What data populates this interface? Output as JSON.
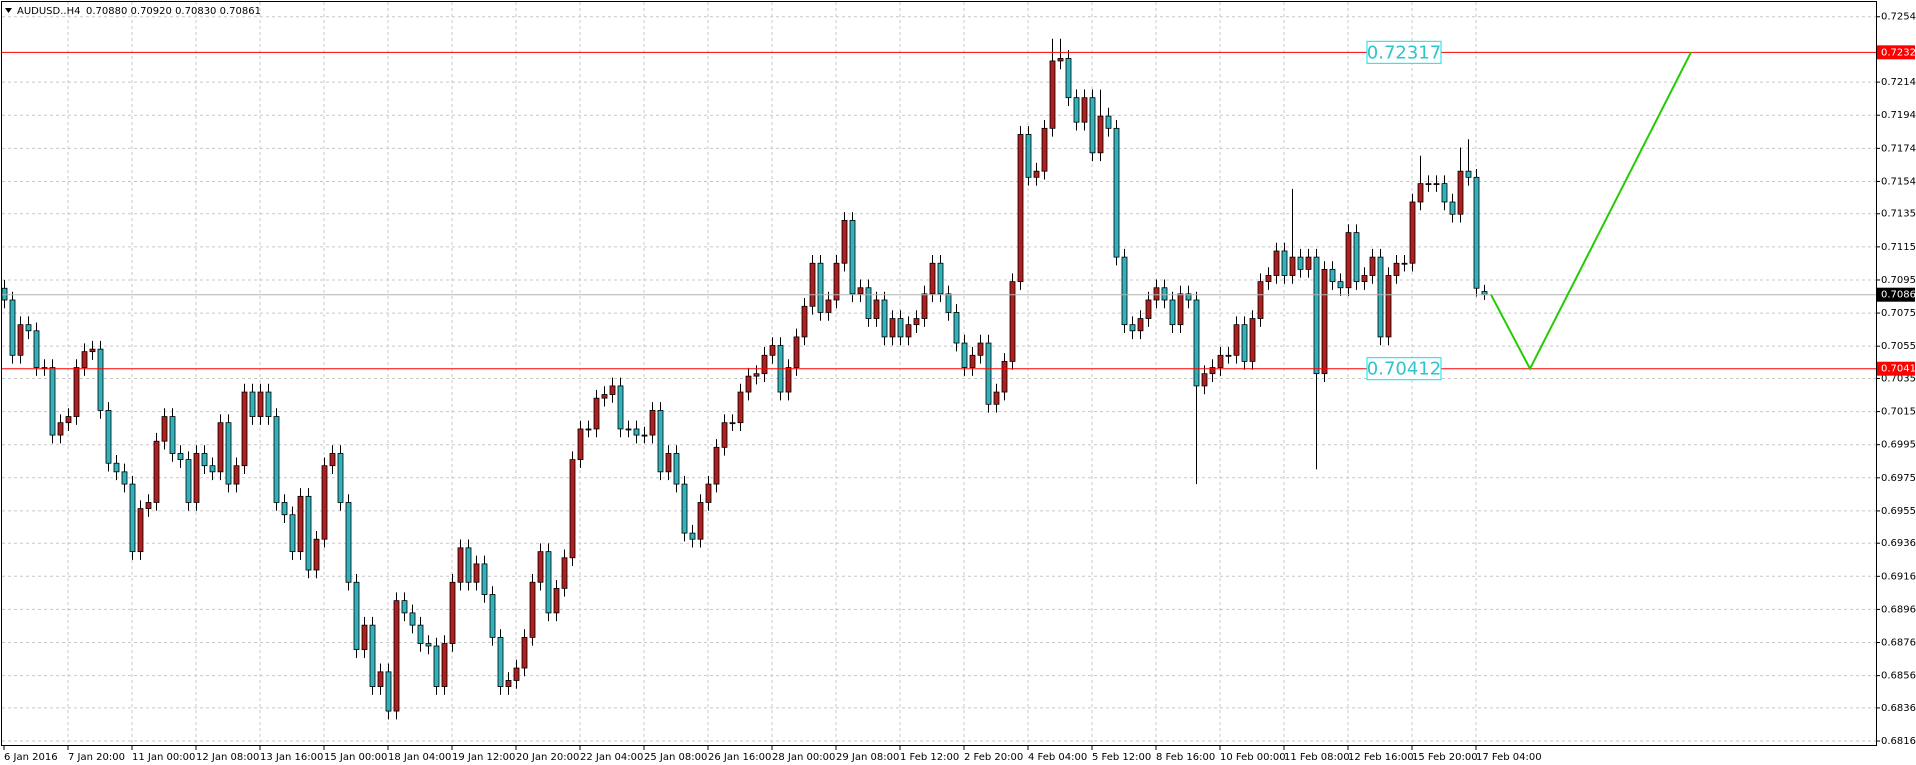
{
  "chart_data": {
    "type": "candlestick",
    "symbol": "AUDUSD..H4",
    "ohlc_text": "0.70880 0.70920 0.70830 0.70861",
    "bull_color": "#b01e1e",
    "bear_color": "#2fb3bd",
    "grid": true,
    "ylim": [
      0.68135,
      0.72629
    ],
    "yticks": [
      {
        "value": 0.7254,
        "label": "0.72540"
      },
      0.72145,
      0.71945,
      0.71745,
      0.71545,
      {
        "value": 0.7135,
        "label": "0.71350"
      },
      {
        "value": 0.7115,
        "label": "0.71150"
      },
      {
        "value": 0.7095,
        "label": "0.70950"
      },
      {
        "value": 0.7075,
        "label": "0.70750"
      },
      {
        "value": 0.7055,
        "label": "0.70550"
      },
      0.70355,
      0.70155,
      0.69955,
      0.69755,
      0.69555,
      {
        "value": 0.6936,
        "label": "0.69360"
      },
      {
        "value": 0.6916,
        "label": "0.69160"
      },
      {
        "value": 0.6896,
        "label": "0.68960"
      },
      {
        "value": 0.6876,
        "label": "0.68760"
      },
      {
        "value": 0.6856,
        "label": "0.68560"
      },
      0.68365,
      0.68165
    ],
    "xlabels": [
      "6 Jan 2016",
      "7 Jan 20:00",
      "11 Jan 00:00",
      "12 Jan 08:00",
      "13 Jan 16:00",
      "15 Jan 00:00",
      "18 Jan 04:00",
      "19 Jan 12:00",
      "20 Jan 20:00",
      "22 Jan 04:00",
      "25 Jan 08:00",
      "26 Jan 16:00",
      "28 Jan 00:00",
      "29 Jan 08:00",
      "1 Feb 12:00",
      "2 Feb 20:00",
      "4 Feb 04:00",
      "5 Feb 12:00",
      "8 Feb 16:00",
      "10 Feb 00:00",
      "11 Feb 08:00",
      "12 Feb 16:00",
      "15 Feb 20:00",
      "17 Feb 04:00"
    ],
    "levels": [
      {
        "value": 0.72325,
        "label": "0.72325",
        "note": "0.72317",
        "color": "#ff0000"
      },
      {
        "value": 0.70414,
        "label": "0.70414",
        "note": "0.70412",
        "color": "#ff0000"
      }
    ],
    "current": {
      "value": 0.70861,
      "label": "0.70861"
    },
    "projection_color": "#22cc00",
    "candles": [
      [
        0.709,
        0.7095,
        0.70779,
        0.70829
      ],
      [
        0.70829,
        0.70879,
        0.70445,
        0.70495
      ],
      [
        0.70495,
        0.7073,
        0.70445,
        0.7068
      ],
      [
        0.7068,
        0.7073,
        0.70593,
        0.70643
      ],
      [
        0.70643,
        0.70693,
        0.70371,
        0.70421
      ],
      [
        0.70421,
        0.70471,
        0.70371,
        0.70421
      ],
      [
        0.70421,
        0.70471,
        0.69963,
        0.70013
      ],
      [
        0.70013,
        0.70138,
        0.69963,
        0.70088
      ],
      [
        0.70088,
        0.70175,
        0.70038,
        0.70125
      ],
      [
        0.70125,
        0.70471,
        0.70075,
        0.70421
      ],
      [
        0.70421,
        0.70567,
        0.70371,
        0.70517
      ],
      [
        0.70517,
        0.70582,
        0.70467,
        0.70532
      ],
      [
        0.70532,
        0.70582,
        0.70112,
        0.70162
      ],
      [
        0.70162,
        0.70212,
        0.69793,
        0.69843
      ],
      [
        0.69843,
        0.69893,
        0.69741,
        0.69791
      ],
      [
        0.69791,
        0.69841,
        0.69667,
        0.69717
      ],
      [
        0.69717,
        0.69767,
        0.69259,
        0.69309
      ],
      [
        0.69309,
        0.69619,
        0.69259,
        0.69569
      ],
      [
        0.69569,
        0.69656,
        0.69519,
        0.69606
      ],
      [
        0.69606,
        0.70026,
        0.69556,
        0.69976
      ],
      [
        0.69976,
        0.70175,
        0.69926,
        0.70125
      ],
      [
        0.70125,
        0.70175,
        0.69852,
        0.69902
      ],
      [
        0.69902,
        0.69952,
        0.69815,
        0.69865
      ],
      [
        0.69865,
        0.69915,
        0.69556,
        0.69606
      ],
      [
        0.69606,
        0.69952,
        0.69556,
        0.69902
      ],
      [
        0.69902,
        0.69952,
        0.69778,
        0.69828
      ],
      [
        0.69828,
        0.69878,
        0.69741,
        0.69791
      ],
      [
        0.69791,
        0.70138,
        0.69741,
        0.70088
      ],
      [
        0.70088,
        0.70138,
        0.69667,
        0.69717
      ],
      [
        0.69717,
        0.69878,
        0.69667,
        0.69828
      ],
      [
        0.69828,
        0.70323,
        0.69778,
        0.70273
      ],
      [
        0.70273,
        0.70323,
        0.70075,
        0.70125
      ],
      [
        0.70125,
        0.70323,
        0.70075,
        0.70273
      ],
      [
        0.70273,
        0.70323,
        0.70075,
        0.70125
      ],
      [
        0.70125,
        0.70175,
        0.69556,
        0.69606
      ],
      [
        0.69606,
        0.69656,
        0.69482,
        0.69532
      ],
      [
        0.69532,
        0.69582,
        0.69259,
        0.69309
      ],
      [
        0.69309,
        0.69693,
        0.69259,
        0.69643
      ],
      [
        0.69643,
        0.69693,
        0.69148,
        0.69198
      ],
      [
        0.69198,
        0.69434,
        0.69148,
        0.69384
      ],
      [
        0.69384,
        0.69878,
        0.69334,
        0.69828
      ],
      [
        0.69828,
        0.69952,
        0.69778,
        0.69902
      ],
      [
        0.69902,
        0.69952,
        0.69556,
        0.69606
      ],
      [
        0.69606,
        0.69656,
        0.69074,
        0.69124
      ],
      [
        0.69124,
        0.69174,
        0.68667,
        0.68717
      ],
      [
        0.68717,
        0.68915,
        0.68667,
        0.68865
      ],
      [
        0.68865,
        0.68915,
        0.68444,
        0.68494
      ],
      [
        0.68494,
        0.68633,
        0.68444,
        0.68583
      ],
      [
        0.68583,
        0.68633,
        0.68296,
        0.68346
      ],
      [
        0.68346,
        0.69063,
        0.68296,
        0.69013
      ],
      [
        0.69013,
        0.69063,
        0.68889,
        0.68939
      ],
      [
        0.68939,
        0.68989,
        0.68815,
        0.68865
      ],
      [
        0.68865,
        0.68915,
        0.68704,
        0.68754
      ],
      [
        0.68754,
        0.68804,
        0.68689,
        0.68739
      ],
      [
        0.68739,
        0.68789,
        0.68444,
        0.68494
      ],
      [
        0.68494,
        0.68804,
        0.68444,
        0.68754
      ],
      [
        0.68754,
        0.69174,
        0.68704,
        0.69124
      ],
      [
        0.69124,
        0.69382,
        0.69074,
        0.69332
      ],
      [
        0.69332,
        0.69382,
        0.69074,
        0.69124
      ],
      [
        0.69124,
        0.69285,
        0.69074,
        0.69235
      ],
      [
        0.69235,
        0.69285,
        0.69,
        0.6905
      ],
      [
        0.6905,
        0.691,
        0.68741,
        0.68791
      ],
      [
        0.68791,
        0.68841,
        0.68444,
        0.68494
      ],
      [
        0.68494,
        0.68581,
        0.68444,
        0.68531
      ],
      [
        0.68531,
        0.68656,
        0.68481,
        0.68606
      ],
      [
        0.68606,
        0.68841,
        0.68556,
        0.68791
      ],
      [
        0.68791,
        0.69174,
        0.68741,
        0.69124
      ],
      [
        0.69124,
        0.69359,
        0.69074,
        0.69309
      ],
      [
        0.69309,
        0.69359,
        0.68889,
        0.68939
      ],
      [
        0.68939,
        0.69137,
        0.68889,
        0.69087
      ],
      [
        0.69087,
        0.69322,
        0.69037,
        0.69272
      ],
      [
        0.69272,
        0.69915,
        0.69222,
        0.69865
      ],
      [
        0.69865,
        0.701,
        0.69815,
        0.7005
      ],
      [
        0.7005,
        0.701,
        0.7,
        0.7005
      ],
      [
        0.7005,
        0.70286,
        0.7,
        0.70236
      ],
      [
        0.70236,
        0.70308,
        0.70186,
        0.70258
      ],
      [
        0.70258,
        0.7036,
        0.70208,
        0.7031
      ],
      [
        0.7031,
        0.7036,
        0.7,
        0.7005
      ],
      [
        0.7005,
        0.701,
        0.7,
        0.7005
      ],
      [
        0.7005,
        0.701,
        0.69963,
        0.70013
      ],
      [
        0.70013,
        0.70063,
        0.69963,
        0.70013
      ],
      [
        0.70013,
        0.70212,
        0.69963,
        0.70162
      ],
      [
        0.70162,
        0.70212,
        0.69741,
        0.69791
      ],
      [
        0.69791,
        0.69952,
        0.69741,
        0.69902
      ],
      [
        0.69902,
        0.69952,
        0.69667,
        0.69717
      ],
      [
        0.69717,
        0.69767,
        0.69371,
        0.69421
      ],
      [
        0.69421,
        0.69471,
        0.69334,
        0.69384
      ],
      [
        0.69384,
        0.69656,
        0.69334,
        0.69606
      ],
      [
        0.69606,
        0.69767,
        0.69556,
        0.69717
      ],
      [
        0.69717,
        0.69989,
        0.69667,
        0.69939
      ],
      [
        0.69939,
        0.70138,
        0.69889,
        0.70088
      ],
      [
        0.70088,
        0.70138,
        0.70038,
        0.70088
      ],
      [
        0.70088,
        0.70323,
        0.70038,
        0.70273
      ],
      [
        0.70273,
        0.70419,
        0.70223,
        0.70369
      ],
      [
        0.70369,
        0.70434,
        0.70319,
        0.70384
      ],
      [
        0.70384,
        0.70545,
        0.70334,
        0.70495
      ],
      [
        0.70495,
        0.70604,
        0.70445,
        0.70554
      ],
      [
        0.70554,
        0.70604,
        0.70223,
        0.70273
      ],
      [
        0.70273,
        0.70471,
        0.70223,
        0.70421
      ],
      [
        0.70421,
        0.70656,
        0.70371,
        0.70606
      ],
      [
        0.70606,
        0.70841,
        0.70556,
        0.70791
      ],
      [
        0.70791,
        0.71101,
        0.70741,
        0.71051
      ],
      [
        0.71051,
        0.71101,
        0.70704,
        0.70754
      ],
      [
        0.70754,
        0.70879,
        0.70704,
        0.70829
      ],
      [
        0.70829,
        0.71101,
        0.70779,
        0.71051
      ],
      [
        0.71051,
        0.7136,
        0.71001,
        0.7131
      ],
      [
        0.7131,
        0.7136,
        0.70816,
        0.70866
      ],
      [
        0.70866,
        0.70953,
        0.70816,
        0.70903
      ],
      [
        0.70903,
        0.70953,
        0.70667,
        0.70717
      ],
      [
        0.70717,
        0.70879,
        0.70667,
        0.70829
      ],
      [
        0.70829,
        0.70879,
        0.70556,
        0.70606
      ],
      [
        0.70606,
        0.70767,
        0.70556,
        0.70717
      ],
      [
        0.70717,
        0.70767,
        0.70556,
        0.70606
      ],
      [
        0.70606,
        0.7073,
        0.70556,
        0.7068
      ],
      [
        0.7068,
        0.70767,
        0.7063,
        0.70717
      ],
      [
        0.70717,
        0.70916,
        0.70667,
        0.70866
      ],
      [
        0.70866,
        0.71101,
        0.70816,
        0.71051
      ],
      [
        0.71051,
        0.71101,
        0.70816,
        0.70866
      ],
      [
        0.70866,
        0.70916,
        0.70704,
        0.70754
      ],
      [
        0.70754,
        0.70804,
        0.70519,
        0.70569
      ],
      [
        0.70569,
        0.70619,
        0.70371,
        0.70421
      ],
      [
        0.70421,
        0.70545,
        0.70371,
        0.70495
      ],
      [
        0.70495,
        0.70619,
        0.70445,
        0.70569
      ],
      [
        0.70569,
        0.70619,
        0.70149,
        0.70199
      ],
      [
        0.70199,
        0.70323,
        0.70149,
        0.70273
      ],
      [
        0.70273,
        0.70508,
        0.70223,
        0.70458
      ],
      [
        0.70458,
        0.7099,
        0.70408,
        0.7094
      ],
      [
        0.7094,
        0.71879,
        0.7089,
        0.71829
      ],
      [
        0.71829,
        0.71879,
        0.7152,
        0.7157
      ],
      [
        0.7157,
        0.71657,
        0.7152,
        0.71607
      ],
      [
        0.71607,
        0.71916,
        0.71557,
        0.71866
      ],
      [
        0.71866,
        0.72407,
        0.71816,
        0.72273
      ],
      [
        0.72273,
        0.72407,
        0.72223,
        0.72288
      ],
      [
        0.72288,
        0.72338,
        0.72001,
        0.72051
      ],
      [
        0.72051,
        0.72101,
        0.71853,
        0.71903
      ],
      [
        0.71903,
        0.72101,
        0.71853,
        0.72051
      ],
      [
        0.72051,
        0.72101,
        0.71668,
        0.71718
      ],
      [
        0.71718,
        0.721,
        0.71668,
        0.7194
      ],
      [
        0.7194,
        0.7199,
        0.71816,
        0.71866
      ],
      [
        0.71866,
        0.71916,
        0.71038,
        0.71088
      ],
      [
        0.71088,
        0.71138,
        0.7063,
        0.7068
      ],
      [
        0.7068,
        0.7073,
        0.70593,
        0.70643
      ],
      [
        0.70643,
        0.70767,
        0.70593,
        0.70717
      ],
      [
        0.70717,
        0.70879,
        0.70667,
        0.70829
      ],
      [
        0.70829,
        0.70953,
        0.70779,
        0.70903
      ],
      [
        0.70903,
        0.70953,
        0.70779,
        0.70829
      ],
      [
        0.70829,
        0.70879,
        0.7063,
        0.7068
      ],
      [
        0.7068,
        0.70916,
        0.7063,
        0.70866
      ],
      [
        0.70866,
        0.70916,
        0.70779,
        0.70829
      ],
      [
        0.70829,
        0.70879,
        0.69717,
        0.7031
      ],
      [
        0.7031,
        0.70434,
        0.7026,
        0.70384
      ],
      [
        0.70384,
        0.70471,
        0.70334,
        0.70421
      ],
      [
        0.70421,
        0.70545,
        0.70371,
        0.70495
      ],
      [
        0.70495,
        0.70545,
        0.70445,
        0.70495
      ],
      [
        0.70495,
        0.7073,
        0.70445,
        0.7068
      ],
      [
        0.7068,
        0.7073,
        0.70408,
        0.70458
      ],
      [
        0.70458,
        0.70767,
        0.70408,
        0.70717
      ],
      [
        0.70717,
        0.7099,
        0.70667,
        0.7094
      ],
      [
        0.7094,
        0.71027,
        0.7089,
        0.70977
      ],
      [
        0.70977,
        0.71175,
        0.70927,
        0.71125
      ],
      [
        0.71125,
        0.71175,
        0.70927,
        0.70977
      ],
      [
        0.70977,
        0.715,
        0.70927,
        0.71088
      ],
      [
        0.71088,
        0.71138,
        0.70964,
        0.71014
      ],
      [
        0.71014,
        0.71138,
        0.70964,
        0.71088
      ],
      [
        0.71088,
        0.71138,
        0.69806,
        0.70384
      ],
      [
        0.70384,
        0.71064,
        0.70334,
        0.71014
      ],
      [
        0.71014,
        0.71064,
        0.7089,
        0.7094
      ],
      [
        0.7094,
        0.7099,
        0.70853,
        0.70903
      ],
      [
        0.70903,
        0.71286,
        0.70853,
        0.71236
      ],
      [
        0.71236,
        0.71286,
        0.7089,
        0.7094
      ],
      [
        0.7094,
        0.71027,
        0.7089,
        0.70977
      ],
      [
        0.70977,
        0.71138,
        0.70927,
        0.71088
      ],
      [
        0.71088,
        0.71138,
        0.70556,
        0.70606
      ],
      [
        0.70606,
        0.71027,
        0.70556,
        0.70977
      ],
      [
        0.70977,
        0.71101,
        0.70927,
        0.71051
      ],
      [
        0.71051,
        0.71101,
        0.71001,
        0.71051
      ],
      [
        0.71051,
        0.71471,
        0.71001,
        0.71421
      ],
      [
        0.71421,
        0.717,
        0.71371,
        0.71532
      ],
      [
        0.71532,
        0.71582,
        0.71482,
        0.71532
      ],
      [
        0.71532,
        0.71582,
        0.71482,
        0.71532
      ],
      [
        0.71532,
        0.71582,
        0.71371,
        0.71421
      ],
      [
        0.71421,
        0.71471,
        0.71297,
        0.71347
      ],
      [
        0.71347,
        0.7175,
        0.71297,
        0.71607
      ],
      [
        0.71607,
        0.718,
        0.7152,
        0.7157
      ],
      [
        0.7157,
        0.7162,
        0.7085,
        0.709
      ],
      [
        0.7088,
        0.7092,
        0.7083,
        0.70861
      ]
    ]
  }
}
